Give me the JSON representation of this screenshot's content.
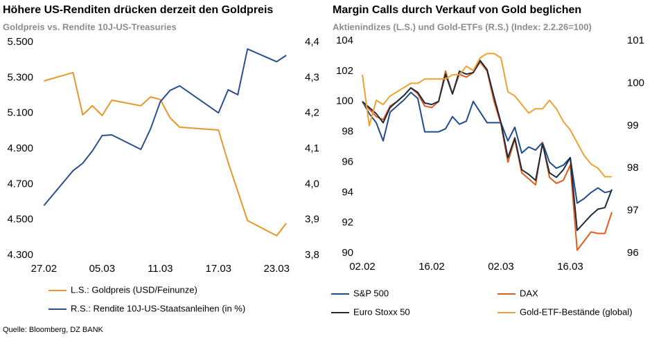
{
  "chart_data": [
    {
      "type": "line",
      "title": "Höhere US-Renditen drücken derzeit den Goldpreis",
      "subtitle": "Goldpreis vs. Rendite 10J-US-Treasuries",
      "x": [
        0,
        3,
        4,
        5,
        6,
        7,
        10,
        11,
        12,
        13,
        14,
        18,
        19,
        20,
        21,
        24,
        25
      ],
      "xlim": [
        -0.6,
        26.2
      ],
      "xticks": [
        {
          "value": 0,
          "label": "27.02"
        },
        {
          "value": 6,
          "label": "05.03"
        },
        {
          "value": 12,
          "label": "11.03"
        },
        {
          "value": 18,
          "label": "17.03"
        },
        {
          "value": 24,
          "label": "23.03"
        }
      ],
      "ylim": [
        4.3,
        5.5
      ],
      "yticks": [
        {
          "value": 4.3,
          "label": "4.300"
        },
        {
          "value": 4.5,
          "label": "4.500"
        },
        {
          "value": 4.7,
          "label": "4.700"
        },
        {
          "value": 4.9,
          "label": "4.900"
        },
        {
          "value": 5.1,
          "label": "5.100"
        },
        {
          "value": 5.3,
          "label": "5.300"
        },
        {
          "value": 5.5,
          "label": "5.500"
        }
      ],
      "y2lim": [
        3.8,
        4.4
      ],
      "y2ticks": [
        {
          "value": 3.8,
          "label": "3,8"
        },
        {
          "value": 3.9,
          "label": "3,9"
        },
        {
          "value": 4.0,
          "label": "4,0"
        },
        {
          "value": 4.1,
          "label": "4,1"
        },
        {
          "value": 4.2,
          "label": "4,2"
        },
        {
          "value": 4.3,
          "label": "4,3"
        },
        {
          "value": 4.4,
          "label": "4,4"
        }
      ],
      "grid": false,
      "series": [
        {
          "name": "L.S.: Goldpreis (USD/Feinunze)",
          "color": "#e8962a",
          "values": [
            5.282,
            5.329,
            5.091,
            5.142,
            5.087,
            5.173,
            5.142,
            5.192,
            5.177,
            5.075,
            5.021,
            5.005,
            4.822,
            4.66,
            4.495,
            4.41,
            4.48
          ]
        },
        {
          "name": "R.S.: Rendite 10J-US-Staatsanleihen (in %)",
          "color": "#2a4d8f",
          "axis": "y2",
          "values": [
            3.94,
            4.038,
            4.059,
            4.094,
            4.137,
            4.139,
            4.098,
            4.156,
            4.232,
            4.264,
            4.277,
            4.201,
            4.266,
            4.252,
            4.381,
            4.345,
            4.363
          ]
        }
      ]
    },
    {
      "type": "line",
      "title": "Margin Calls durch Verkauf von Gold beglichen",
      "subtitle": "Aktienindizes (L.S.) und Gold-ETFs (R.S.) (Index: 2.2.26=100)",
      "categories": [
        "02.02",
        null,
        null,
        null,
        null,
        null,
        null,
        null,
        null,
        null,
        "16.02",
        null,
        null,
        null,
        null,
        null,
        null,
        null,
        null,
        null,
        "02.03",
        null,
        null,
        null,
        null,
        null,
        null,
        null,
        null,
        null,
        "16.03",
        null,
        null,
        null,
        null,
        null,
        null
      ],
      "ylim": [
        90,
        104
      ],
      "yticks": [
        90,
        92,
        94,
        96,
        98,
        100,
        102,
        104
      ],
      "y2lim": [
        96,
        101
      ],
      "y2ticks": [
        96,
        97,
        98,
        99,
        100,
        101
      ],
      "grid": false,
      "series": [
        {
          "name": "S&P 500",
          "color": "#1f4a8c",
          "values": [
            100.0,
            99.2,
            98.6,
            97.4,
            99.3,
            99.7,
            100.1,
            100.6,
            100.2,
            98.0,
            98.0,
            98.0,
            98.2,
            99.0,
            98.5,
            98.7,
            100.0,
            99.3,
            98.6,
            98.6,
            98.6,
            97.4,
            98.3,
            96.6,
            97.0,
            96.8,
            97.3,
            96.0,
            95.6,
            95.8,
            96.3,
            93.3,
            93.6,
            94.0,
            94.3,
            94.0,
            94.1
          ]
        },
        {
          "name": "DAX",
          "color": "#e05a1e",
          "values": [
            100.0,
            99.5,
            99.0,
            98.8,
            99.7,
            100.0,
            100.4,
            100.9,
            100.5,
            99.7,
            99.6,
            100.0,
            102.0,
            100.5,
            101.8,
            101.6,
            101.9,
            102.6,
            102.0,
            100.0,
            98.5,
            96.0,
            97.5,
            95.3,
            94.9,
            94.5,
            97.3,
            95.0,
            94.6,
            94.8,
            95.8,
            90.2,
            90.8,
            91.4,
            91.3,
            91.3,
            92.7
          ]
        },
        {
          "name": "Euro Stoxx 50",
          "color": "#1c2a3a",
          "values": [
            100.0,
            99.6,
            99.2,
            98.6,
            99.6,
            100.0,
            100.4,
            100.9,
            100.6,
            99.9,
            99.8,
            100.0,
            101.8,
            100.5,
            102.0,
            101.8,
            101.9,
            102.7,
            102.1,
            100.3,
            98.6,
            96.3,
            97.6,
            95.5,
            95.2,
            94.8,
            97.2,
            95.3,
            95.0,
            95.5,
            96.3,
            91.5,
            92.0,
            92.5,
            92.9,
            93.0,
            94.2
          ]
        },
        {
          "name": "Gold-ETF-Bestände (global)",
          "color": "#f0a030",
          "axis": "y2",
          "values": [
            100.2,
            99.0,
            99.6,
            99.5,
            99.7,
            99.8,
            99.9,
            100.0,
            100.0,
            100.1,
            100.1,
            100.1,
            100.1,
            100.2,
            100.2,
            100.4,
            100.3,
            100.6,
            100.7,
            100.7,
            100.6,
            99.8,
            99.7,
            99.5,
            99.3,
            99.4,
            99.4,
            99.6,
            99.4,
            99.1,
            98.9,
            98.6,
            98.3,
            98.1,
            98.0,
            97.8,
            97.8
          ]
        }
      ]
    }
  ],
  "source": "Quelle: Bloomberg, DZ BANK"
}
